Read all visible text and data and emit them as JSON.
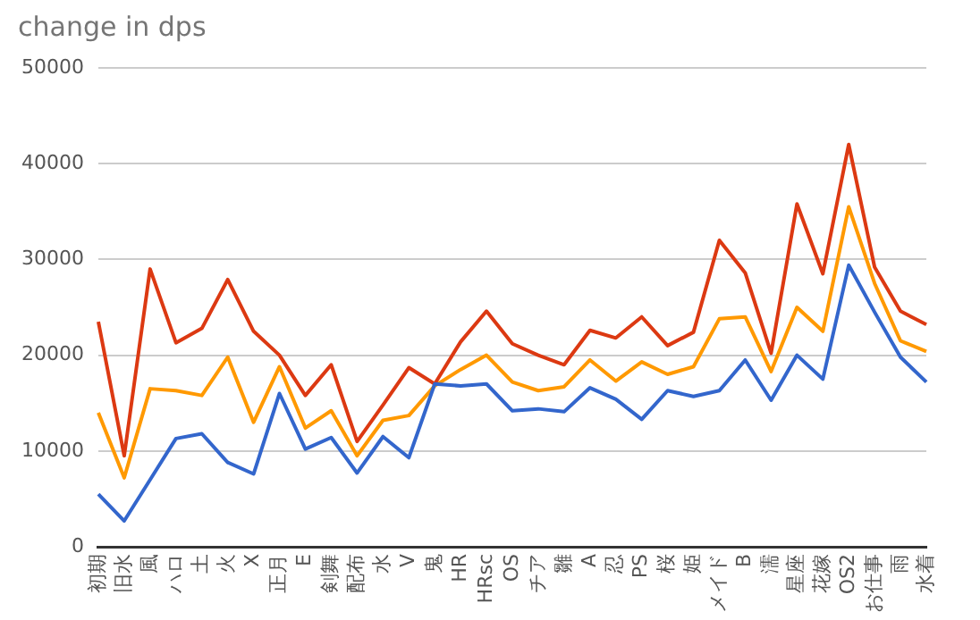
{
  "chart_data": {
    "type": "line",
    "title": "change in dps",
    "categories": [
      "初期",
      "旧水",
      "風",
      "ハロ",
      "土",
      "火",
      "X",
      "正月",
      "E",
      "剣舞",
      "配布",
      "水",
      "V",
      "鬼",
      "HR",
      "HRsc",
      "OS",
      "チア",
      "雛",
      "A",
      "忍",
      "PS",
      "桜",
      "姫",
      "メイド",
      "B",
      "濡",
      "星座",
      "花嫁",
      "OS2",
      "お仕事",
      "雨",
      "水着"
    ],
    "series": [
      {
        "color": "#3366cc",
        "values": [
          5500,
          2700,
          7000,
          11300,
          11800,
          8800,
          7600,
          16000,
          10200,
          11400,
          7700,
          11500,
          9300,
          17000,
          16800,
          17000,
          14200,
          14400,
          14100,
          16600,
          15400,
          13300,
          16300,
          15700,
          16300,
          19500,
          15300,
          20000,
          17500,
          29400,
          24500,
          19800,
          17200
        ]
      },
      {
        "color": "#dc3912",
        "values": [
          23500,
          9500,
          29000,
          21300,
          22800,
          27900,
          22500,
          20000,
          15800,
          19000,
          11000,
          14800,
          18700,
          17000,
          21400,
          24600,
          21200,
          20000,
          19000,
          22600,
          21800,
          24000,
          21000,
          22400,
          32000,
          28600,
          20200,
          35800,
          28500,
          42000,
          29200,
          24600,
          23200
        ]
      },
      {
        "color": "#ff9900",
        "values": [
          14000,
          7200,
          16500,
          16300,
          15800,
          19800,
          13000,
          18800,
          12400,
          14200,
          9500,
          13200,
          13700,
          16800,
          18500,
          20000,
          17200,
          16300,
          16700,
          19500,
          17300,
          19300,
          18000,
          18800,
          23800,
          24000,
          18300,
          25000,
          22500,
          35500,
          27500,
          21500,
          20400
        ]
      }
    ],
    "ylim": [
      0,
      50000
    ],
    "yticks": [
      0,
      10000,
      20000,
      30000,
      40000,
      50000
    ],
    "grid": "y",
    "legend": false,
    "marker": "none",
    "line_style": "solid"
  }
}
